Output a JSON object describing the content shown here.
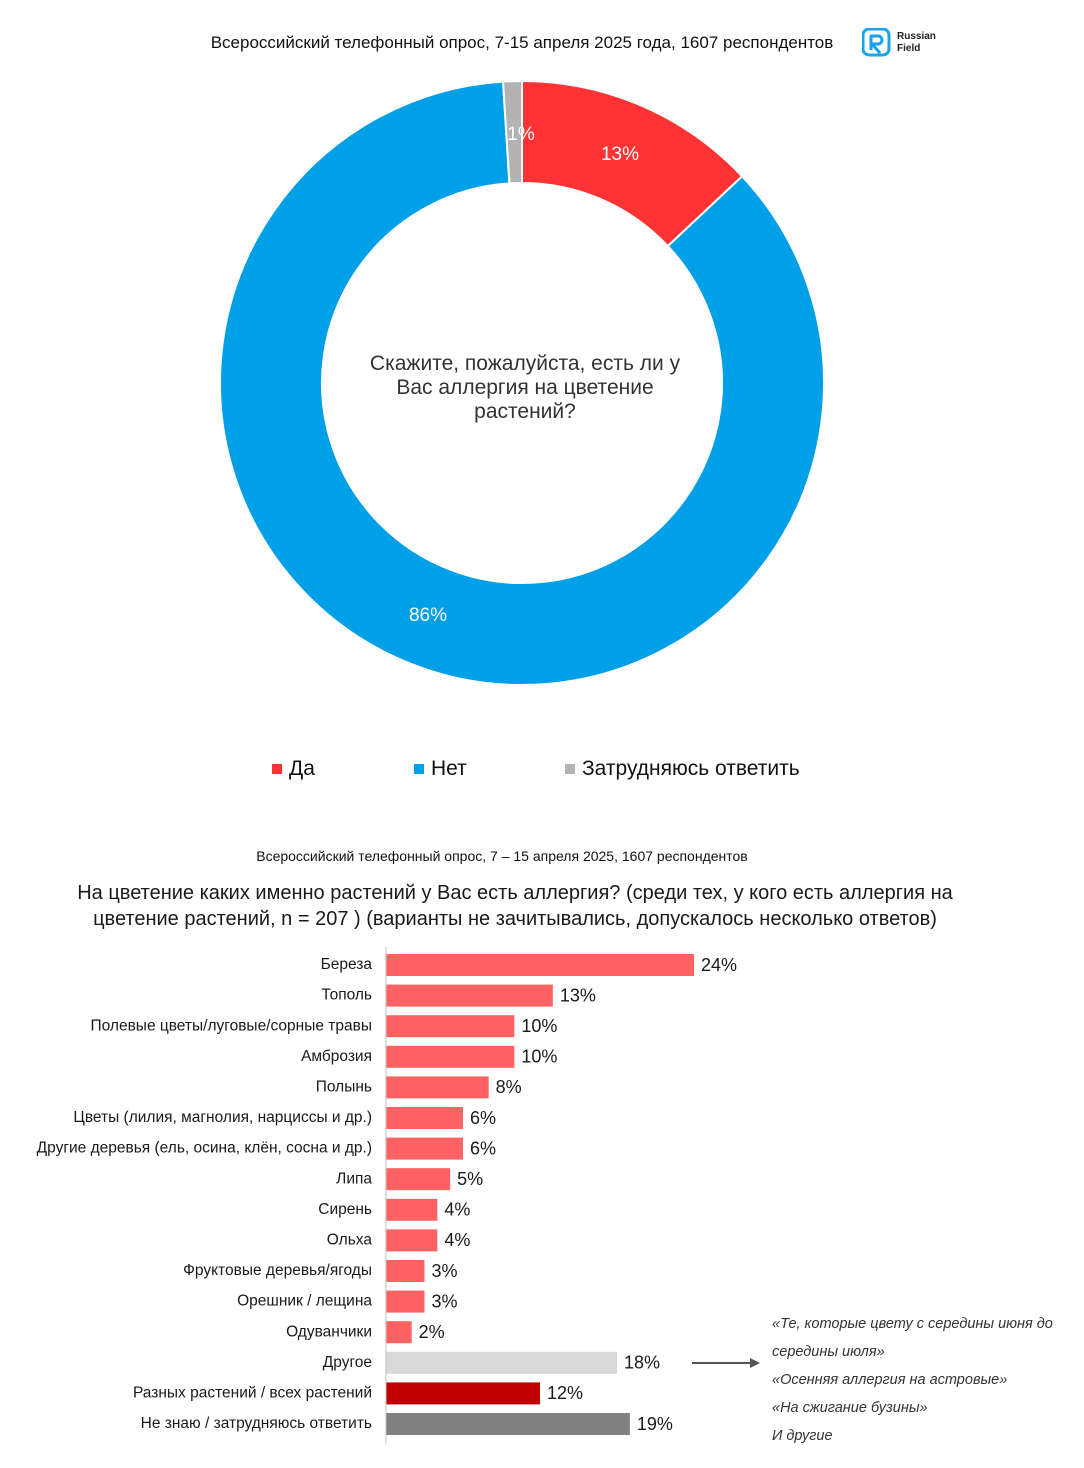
{
  "header1": {
    "survey": "Всероссийский телефонный опрос, 7-15 апреля 2025 года, 1607 респондентов"
  },
  "logo": {
    "line1": "Russian",
    "line2": "Field",
    "color": "#1aa3e8"
  },
  "chart_data": [
    {
      "type": "pie",
      "question": "Скажите, пожалуйста, есть ли у Вас аллергия на цветение растений?",
      "slices": [
        {
          "name": "Да",
          "value": 13,
          "label": "13%",
          "color": "#ff3333"
        },
        {
          "name": "Нет",
          "value": 86,
          "label": "86%",
          "color": "#00a0e9"
        },
        {
          "name": "Затрудняюсь ответить",
          "value": 1,
          "label": "1%",
          "color": "#b3b3b3"
        }
      ],
      "legend_placement": "bottom"
    },
    {
      "type": "bar",
      "orientation": "horizontal",
      "survey": "Всероссийский телефонный опрос, 7 – 15 апреля 2025, 1607 респондентов",
      "title": "На цветение каких именно растений у Вас есть аллергия? (среди тех, у кого есть аллергия на цветение растений, n = 207 ) (варианты не зачитывались, допускалось несколько ответов)",
      "categories": [
        {
          "label": "Береза",
          "value": 24,
          "display": "24%",
          "color": "#ff6262"
        },
        {
          "label": "Тополь",
          "value": 13,
          "display": "13%",
          "color": "#ff6262"
        },
        {
          "label": "Полевые цветы/луговые/сорные травы",
          "value": 10,
          "display": "10%",
          "color": "#ff6262"
        },
        {
          "label": "Амброзия",
          "value": 10,
          "display": "10%",
          "color": "#ff6262"
        },
        {
          "label": "Полынь",
          "value": 8,
          "display": "8%",
          "color": "#ff6262"
        },
        {
          "label": "Цветы (лилия, магнолия, нарциссы и др.)",
          "value": 6,
          "display": "6%",
          "color": "#ff6262"
        },
        {
          "label": "Другие деревья (ель, осина, клён, сосна и др.)",
          "value": 6,
          "display": "6%",
          "color": "#ff6262"
        },
        {
          "label": "Липа",
          "value": 5,
          "display": "5%",
          "color": "#ff6262"
        },
        {
          "label": "Сирень",
          "value": 4,
          "display": "4%",
          "color": "#ff6262"
        },
        {
          "label": "Ольха",
          "value": 4,
          "display": "4%",
          "color": "#ff6262"
        },
        {
          "label": "Фруктовые деревья/ягоды",
          "value": 3,
          "display": "3%",
          "color": "#ff6262"
        },
        {
          "label": "Орешник / лещина",
          "value": 3,
          "display": "3%",
          "color": "#ff6262"
        },
        {
          "label": "Одуванчики",
          "value": 2,
          "display": "2%",
          "color": "#ff6262"
        },
        {
          "label": "Другое",
          "value": 18,
          "display": "18%",
          "color": "#d9d9d9"
        },
        {
          "label": "Разных растений / всех растений",
          "value": 12,
          "display": "12%",
          "color": "#c00000"
        },
        {
          "label": "Не знаю / затрудняюсь ответить",
          "value": 19,
          "display": "19%",
          "color": "#808080"
        }
      ]
    }
  ],
  "quotes": [
    "«Те, которые цвету с середины июня до",
    "середины июля»",
    "«Осенняя аллергия на астровые»",
    "«На сжигание бузины»",
    "И другие"
  ]
}
